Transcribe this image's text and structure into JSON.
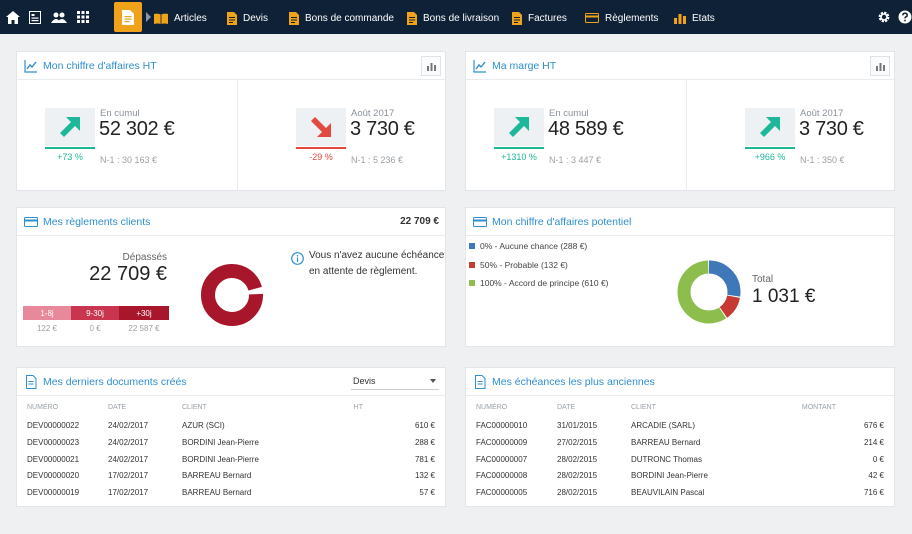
{
  "nav": {
    "items": [
      {
        "label": "Articles",
        "icon": "book-icon"
      },
      {
        "label": "Devis",
        "icon": "document-icon"
      },
      {
        "label": "Bons de commande",
        "icon": "document-icon"
      },
      {
        "label": "Bons de livraison",
        "icon": "document-icon"
      },
      {
        "label": "Factures",
        "icon": "document-icon"
      },
      {
        "label": "Règlements",
        "icon": "card-icon"
      },
      {
        "label": "Etats",
        "icon": "bar-chart-icon"
      }
    ]
  },
  "revenue": {
    "title": "Mon chiffre d'affaires HT",
    "cumul": {
      "label": "En cumul",
      "value": "52 302 €",
      "change": "+73 %",
      "previous": "N-1 : 30 163 €",
      "trend": "up"
    },
    "month": {
      "label": "Août 2017",
      "value": "3 730 €",
      "change": "-29 %",
      "previous": "N-1 : 5 236 €",
      "trend": "down"
    }
  },
  "margin": {
    "title": "Ma marge HT",
    "cumul": {
      "label": "En cumul",
      "value": "48 589 €",
      "change": "+1310 %",
      "previous": "N-1 : 3 447 €",
      "trend": "up"
    },
    "month": {
      "label": "Août 2017",
      "value": "3 730 €",
      "change": "+966 %",
      "previous": "N-1 : 350 €",
      "trend": "up"
    }
  },
  "payments": {
    "title": "Mes règlements clients",
    "header_total": "22 709 €",
    "overdue_label": "Dépassés",
    "overdue_value": "22 709 €",
    "buckets": [
      {
        "label": "1-8j",
        "amount": "122 €",
        "color": "#e8889b"
      },
      {
        "label": "9-30j",
        "amount": "0 €",
        "color": "#c9354f"
      },
      {
        "label": "+30j",
        "amount": "22 587 €",
        "color": "#a8162c"
      }
    ],
    "info": "Vous n'avez aucune échéance en attente de règlement.",
    "accent": "#a8162c"
  },
  "potential": {
    "title": "Mon chiffre d'affaires potentiel",
    "legend": [
      {
        "label": "0% - Aucune chance (288 €)",
        "color": "#3e78b8",
        "value": 288
      },
      {
        "label": "50% - Probable (132 €)",
        "color": "#c63a34",
        "value": 132
      },
      {
        "label": "100% - Accord de principe (610 €)",
        "color": "#8dbd4c",
        "value": 610
      }
    ],
    "total_label": "Total",
    "total_value": "1 031 €"
  },
  "documents": {
    "title": "Mes derniers documents créés",
    "select_value": "Devis",
    "columns": [
      "NUMÉRO",
      "DATE",
      "CLIENT",
      "HT"
    ],
    "rows": [
      [
        "DEV00000022",
        "24/02/2017",
        "AZUR (SCI)",
        "610 €"
      ],
      [
        "DEV00000023",
        "24/02/2017",
        "BORDINI Jean-Pierre",
        "288 €"
      ],
      [
        "DEV00000021",
        "24/02/2017",
        "BORDINI Jean-Pierre",
        "781 €"
      ],
      [
        "DEV00000020",
        "17/02/2017",
        "BARREAU Bernard",
        "132 €"
      ],
      [
        "DEV00000019",
        "17/02/2017",
        "BARREAU Bernard",
        "57 €"
      ]
    ]
  },
  "due": {
    "title": "Mes échéances les plus anciennes",
    "columns": [
      "NUMÉRO",
      "DATE",
      "CLIENT",
      "MONTANT"
    ],
    "rows": [
      [
        "FAC00000010",
        "31/01/2015",
        "ARCADIE (SARL)",
        "676 €"
      ],
      [
        "FAC00000009",
        "27/02/2015",
        "BARREAU Bernard",
        "214 €"
      ],
      [
        "FAC00000007",
        "28/02/2015",
        "DUTRONC Thomas",
        "0 €"
      ],
      [
        "FAC00000008",
        "28/02/2015",
        "BORDINI Jean-Pierre",
        "42 €"
      ],
      [
        "FAC00000005",
        "28/02/2015",
        "BEAUVILAIN Pascal",
        "716 €"
      ]
    ]
  },
  "colors": {
    "nav_bg": "#0f2136",
    "accent_orange": "#f1a21b",
    "teal": "#1db899",
    "red": "#e2493f",
    "title_blue": "#2f8fcf"
  }
}
